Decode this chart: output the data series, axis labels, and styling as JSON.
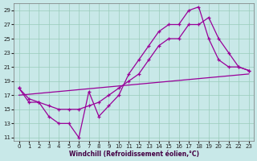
{
  "bg_color": "#c8e8e8",
  "line_color": "#990099",
  "grid_color": "#99ccbb",
  "xlabel": "Windchill (Refroidissement éolien,°C)",
  "xlim": [
    -0.5,
    23.5
  ],
  "ylim": [
    10.5,
    30
  ],
  "xticks": [
    0,
    1,
    2,
    3,
    4,
    5,
    6,
    7,
    8,
    9,
    10,
    11,
    12,
    13,
    14,
    15,
    16,
    17,
    18,
    19,
    20,
    21,
    22,
    23
  ],
  "yticks": [
    11,
    13,
    15,
    17,
    19,
    21,
    23,
    25,
    27,
    29
  ],
  "curve1_x": [
    0,
    1,
    2,
    3,
    4,
    5,
    6,
    7,
    8,
    9,
    10,
    11,
    12,
    13,
    14,
    15,
    16,
    17,
    18,
    19,
    20,
    21,
    22,
    23
  ],
  "curve1_y": [
    18,
    16,
    16,
    14,
    13,
    13,
    11,
    17.5,
    14,
    15.5,
    17,
    20,
    22,
    24,
    26,
    27,
    27,
    29,
    29.5,
    25,
    22,
    21,
    21,
    20.5
  ],
  "curve2_x": [
    0,
    1,
    2,
    3,
    4,
    5,
    6,
    7,
    8,
    9,
    10,
    11,
    12,
    13,
    14,
    15,
    16,
    17,
    18,
    19,
    20,
    21,
    22,
    23
  ],
  "curve2_y": [
    18,
    16.5,
    16,
    15.5,
    15,
    15,
    15,
    15.5,
    16,
    17,
    18,
    19,
    20,
    22,
    24,
    25,
    25,
    27,
    27,
    28,
    25,
    23,
    21,
    20.5
  ],
  "line3_x": [
    0,
    23
  ],
  "line3_y": [
    17.0,
    20.0
  ]
}
